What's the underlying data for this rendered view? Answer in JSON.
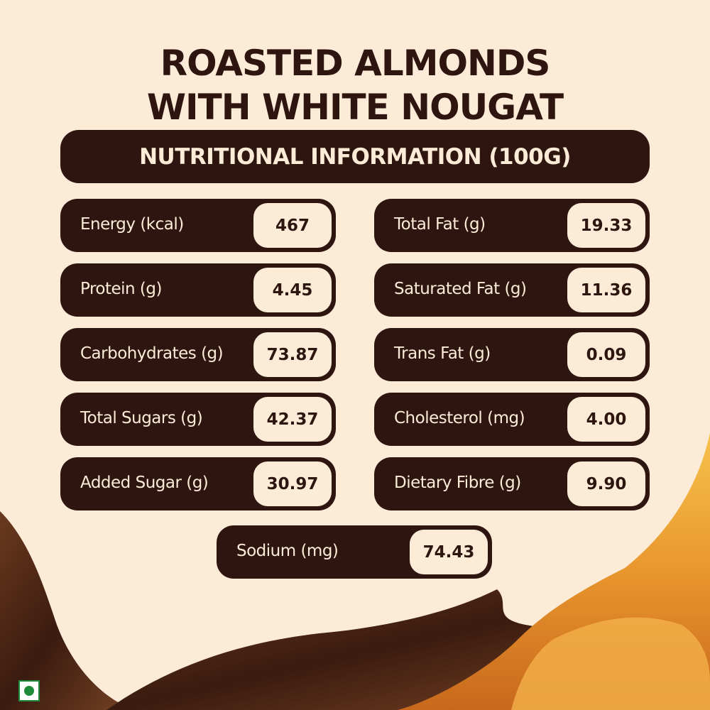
{
  "header": {
    "title": "ROASTED ALMONDS WITH WHITE NOUGAT",
    "subtitle": "NUTRITIONAL INFORMATION (100G)"
  },
  "nutrients": {
    "left": [
      {
        "label": "Energy (kcal)",
        "value": "467"
      },
      {
        "label": "Protein (g)",
        "value": "4.45"
      },
      {
        "label": "Carbohydrates (g)",
        "value": "73.87"
      },
      {
        "label": "Total Sugars (g)",
        "value": "42.37"
      },
      {
        "label": "Added Sugar (g)",
        "value": "30.97"
      }
    ],
    "right": [
      {
        "label": "Total Fat (g)",
        "value": "19.33"
      },
      {
        "label": "Saturated Fat (g)",
        "value": "11.36"
      },
      {
        "label": "Trans Fat (g)",
        "value": "0.09"
      },
      {
        "label": "Cholesterol (mg)",
        "value": "4.00"
      },
      {
        "label": "Dietary Fibre (g)",
        "value": "9.90"
      }
    ],
    "bottom": [
      {
        "label": "Sodium (mg)",
        "value": "74.43"
      }
    ]
  }
}
